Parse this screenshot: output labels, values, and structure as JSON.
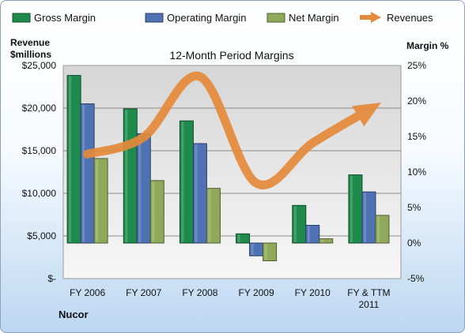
{
  "chart_data": {
    "type": "bar",
    "title": "12-Month Period Margins",
    "left_axis_title": [
      "Revenue",
      "$millions"
    ],
    "right_axis_title": "Margin %",
    "footer_label": "Nucor",
    "categories": [
      [
        "FY 2006"
      ],
      [
        "FY 2007"
      ],
      [
        "FY 2008"
      ],
      [
        "FY 2009"
      ],
      [
        "FY 2010"
      ],
      [
        "FY & TTM",
        "2011"
      ]
    ],
    "left_ticks": [
      "$25,000",
      "$20,000",
      "$15,000",
      "$10,000",
      "$5,000",
      "$-"
    ],
    "right_ticks": [
      "25%",
      "20%",
      "15%",
      "10%",
      "5%",
      "0%",
      "-5%"
    ],
    "left_axis": {
      "min": 0,
      "max": 25000,
      "step": 5000
    },
    "right_axis": {
      "min": -5,
      "max": 25,
      "step": 5
    },
    "grid": true,
    "legend_position": "top",
    "series": [
      {
        "name": "Gross Margin",
        "axis": "right",
        "color": "#1e8a4c",
        "values": [
          23.6,
          18.9,
          17.2,
          1.3,
          5.3,
          9.6
        ]
      },
      {
        "name": "Operating Margin",
        "axis": "right",
        "color": "#4f72b4",
        "values": [
          19.6,
          15.4,
          14.0,
          -1.8,
          2.5,
          7.2
        ]
      },
      {
        "name": "Net Margin",
        "axis": "right",
        "color": "#8fa95a",
        "values": [
          11.9,
          8.8,
          7.7,
          -2.5,
          0.6,
          3.9
        ]
      }
    ],
    "line_series": {
      "name": "Revenues",
      "axis": "left",
      "color": "#e58a3a",
      "values": [
        14600,
        16600,
        23700,
        11200,
        15900,
        19800
      ]
    }
  }
}
